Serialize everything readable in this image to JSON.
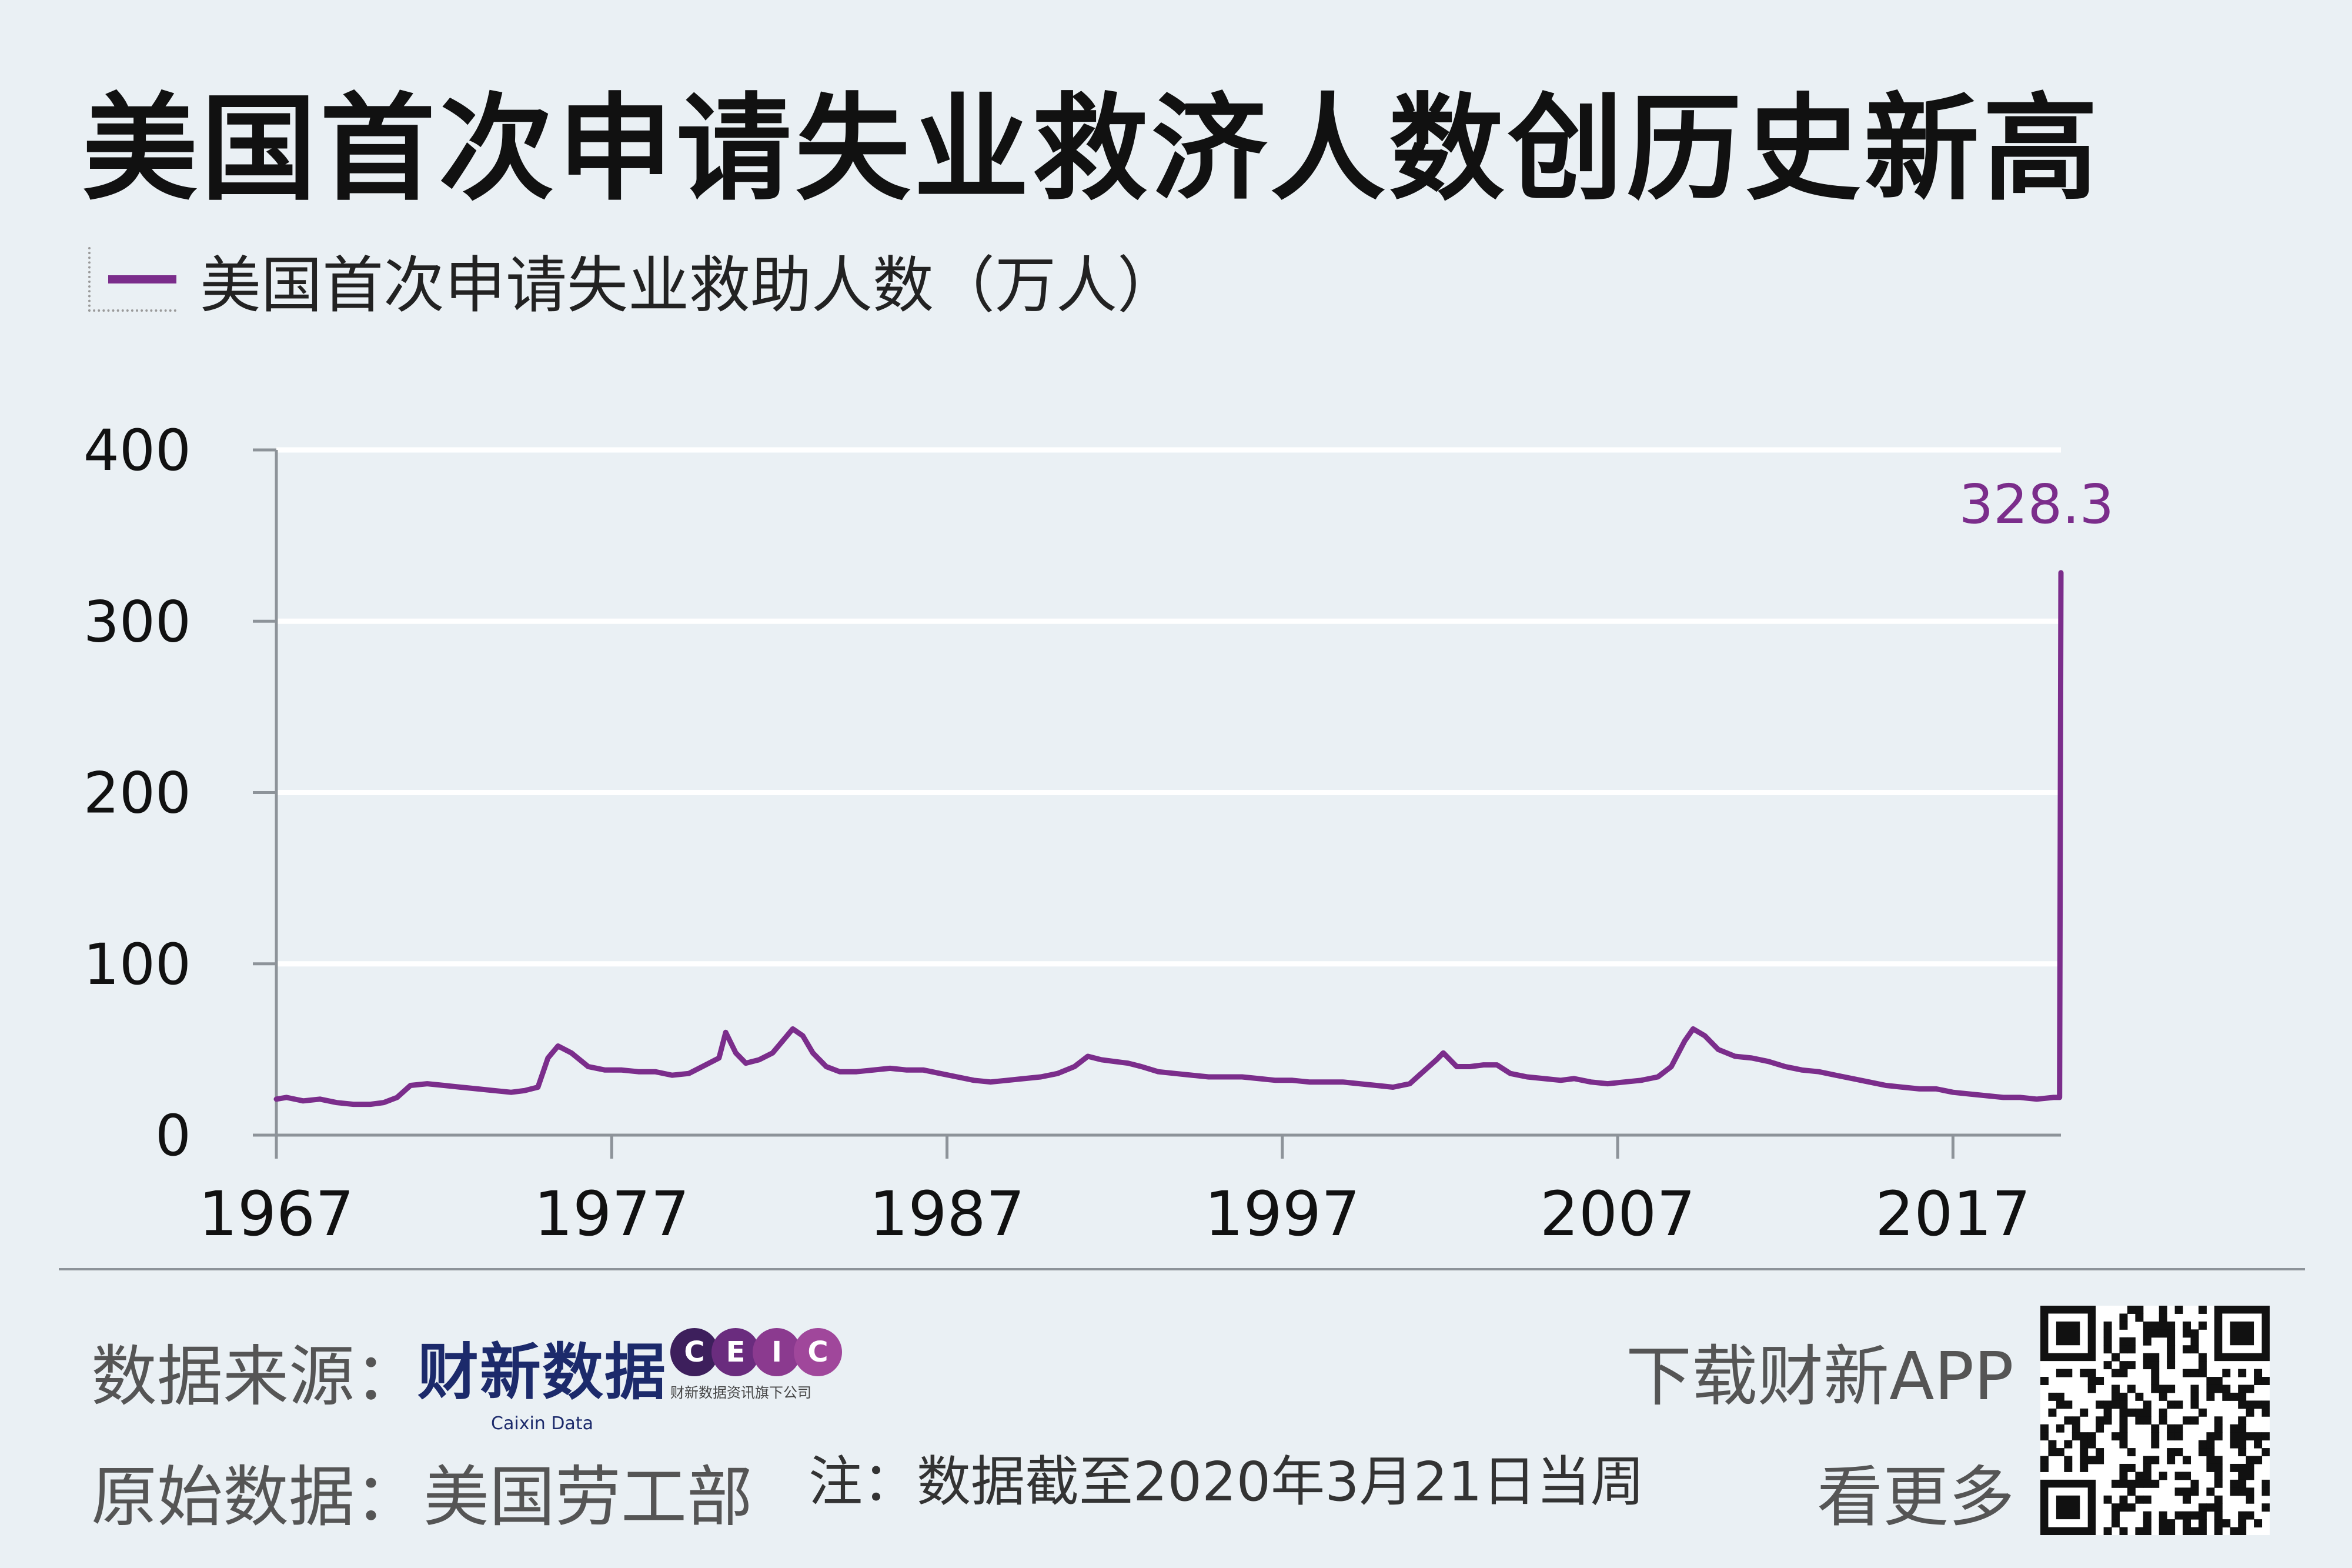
{
  "header": {
    "title": "美国首次申请失业救济人数创历史新高"
  },
  "legend": {
    "label": "美国首次申请失业救助人数（万人）",
    "color": "#7b2d8b"
  },
  "chart_data": {
    "type": "line",
    "ylim": [
      0,
      400
    ],
    "y_ticks": [
      0,
      100,
      200,
      300,
      400
    ],
    "y_tick_labels": [
      "0",
      "100",
      "200",
      "300",
      "400"
    ],
    "x_ticks": [
      1967,
      1977,
      1987,
      1997,
      2007,
      2017
    ],
    "x_tick_labels": [
      "1967",
      "1977",
      "1987",
      "1997",
      "2007",
      "2017"
    ],
    "xlim": [
      1967,
      2020.22
    ],
    "grid": true,
    "annotation": {
      "x": 2020.22,
      "y": 328.3,
      "text": "328.3"
    },
    "series": [
      {
        "name": "美国首次申请失业救助人数（万人）",
        "color": "#7b2d8b",
        "x": [
          1967.0,
          1967.3,
          1967.8,
          1968.3,
          1968.8,
          1969.3,
          1969.8,
          1970.2,
          1970.6,
          1971.0,
          1971.5,
          1972.0,
          1972.5,
          1973.0,
          1973.5,
          1974.0,
          1974.4,
          1974.8,
          1975.1,
          1975.4,
          1975.8,
          1976.3,
          1976.8,
          1977.3,
          1977.8,
          1978.3,
          1978.8,
          1979.3,
          1979.8,
          1980.2,
          1980.4,
          1980.7,
          1981.0,
          1981.4,
          1981.8,
          1982.1,
          1982.4,
          1982.7,
          1983.0,
          1983.4,
          1983.8,
          1984.3,
          1984.8,
          1985.3,
          1985.8,
          1986.3,
          1986.8,
          1987.3,
          1987.8,
          1988.3,
          1988.8,
          1989.3,
          1989.8,
          1990.3,
          1990.8,
          1991.2,
          1991.6,
          1992.0,
          1992.4,
          1992.8,
          1993.3,
          1993.8,
          1994.3,
          1994.8,
          1995.3,
          1995.8,
          1996.3,
          1996.8,
          1997.3,
          1997.8,
          1998.3,
          1998.8,
          1999.3,
          1999.8,
          2000.3,
          2000.8,
          2001.2,
          2001.6,
          2001.8,
          2002.2,
          2002.6,
          2003.0,
          2003.4,
          2003.8,
          2004.3,
          2004.8,
          2005.3,
          2005.7,
          2006.2,
          2006.7,
          2007.2,
          2007.7,
          2008.2,
          2008.6,
          2009.0,
          2009.25,
          2009.6,
          2010.0,
          2010.5,
          2011.0,
          2011.5,
          2012.0,
          2012.5,
          2013.0,
          2013.5,
          2014.0,
          2014.5,
          2015.0,
          2015.5,
          2016.0,
          2016.5,
          2017.0,
          2017.5,
          2018.0,
          2018.5,
          2019.0,
          2019.5,
          2020.0,
          2020.18,
          2020.22
        ],
        "values": [
          21,
          22,
          20,
          21,
          19,
          18,
          18,
          19,
          22,
          29,
          30,
          29,
          28,
          27,
          26,
          25,
          26,
          28,
          45,
          52,
          48,
          40,
          38,
          38,
          37,
          37,
          35,
          36,
          41,
          45,
          60,
          48,
          42,
          44,
          48,
          55,
          62,
          58,
          48,
          40,
          37,
          37,
          38,
          39,
          38,
          38,
          36,
          34,
          32,
          31,
          32,
          33,
          34,
          36,
          40,
          46,
          44,
          43,
          42,
          40,
          37,
          36,
          35,
          34,
          34,
          34,
          33,
          32,
          32,
          31,
          31,
          31,
          30,
          29,
          28,
          30,
          37,
          44,
          48,
          40,
          40,
          41,
          41,
          36,
          34,
          33,
          32,
          33,
          31,
          30,
          31,
          32,
          34,
          40,
          55,
          62,
          58,
          50,
          46,
          45,
          43,
          40,
          38,
          37,
          35,
          33,
          31,
          29,
          28,
          27,
          27,
          25,
          24,
          23,
          22,
          22,
          21,
          22,
          22,
          328.3
        ]
      }
    ]
  },
  "footer": {
    "source_label": "数据来源：",
    "caixin_logo_text": "财新数据",
    "caixin_logo_sub": "Caixin Data",
    "ceic_letters": [
      "C",
      "E",
      "I",
      "C"
    ],
    "ceic_sub": "财新数据资讯旗下公司",
    "raw_data_label": "原始数据：",
    "raw_data_value": "美国劳工部",
    "note": "注：数据截至2020年3月21日当周",
    "app_promo": "下载财新APP",
    "app_more": "看更多"
  },
  "colors": {
    "background": "#eaf0f4",
    "line": "#7b2d8b",
    "grid": "#ffffff",
    "axis": "#8d9399",
    "caixin_blue": "#1c2a6b",
    "ceic_dark": "#3d1f5c",
    "ceic_mid": "#7b2d8b"
  }
}
